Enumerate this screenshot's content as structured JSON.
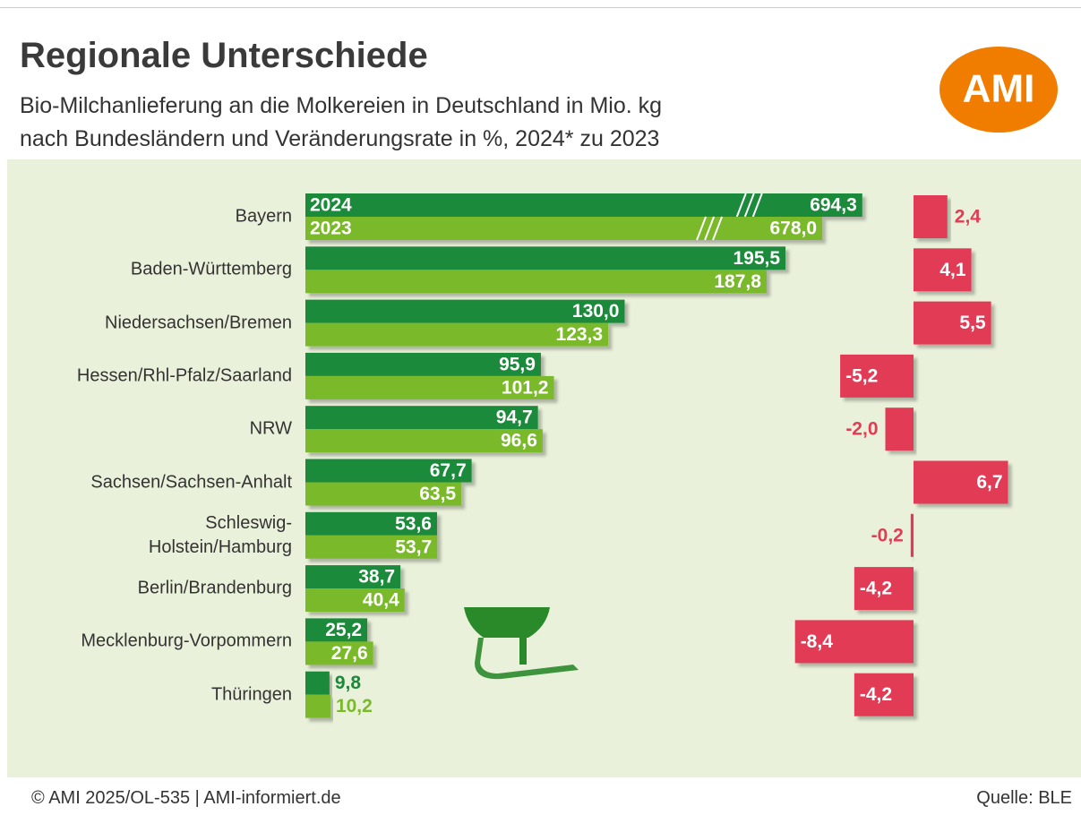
{
  "chart_data": [
    {
      "type": "bar",
      "orientation": "horizontal",
      "title": "Regionale Unterschiede",
      "subtitle": "Bio-Milchanlieferung an die Molkereien in Deutschland in Mio. kg\nnach Bundesländern und Veränderungsrate in %, 2024* zu 2023",
      "categories": [
        "Bayern",
        "Baden-Württemberg",
        "Niedersachsen/Bremen",
        "Hessen/Rhl-Pfalz/Saarland",
        "NRW",
        "Sachsen/Sachsen-Anhalt",
        "Schleswig-\nHolstein/Hamburg",
        "Berlin/Brandenburg",
        "Mecklenburg-Vorpommern",
        "Thüringen"
      ],
      "series": [
        {
          "name": "2024",
          "color": "#1a8a3a",
          "values": [
            694.3,
            195.5,
            130.0,
            95.9,
            94.7,
            67.7,
            53.6,
            38.7,
            25.2,
            9.8
          ],
          "value_labels": [
            "694,3",
            "195,5",
            "130,0",
            "95,9",
            "94,7",
            "67,7",
            "53,6",
            "38,7",
            "25,2",
            "9,8"
          ]
        },
        {
          "name": "2023",
          "color": "#7ab929",
          "values": [
            678.0,
            187.8,
            123.3,
            101.2,
            96.6,
            63.5,
            53.7,
            40.4,
            27.6,
            10.2
          ],
          "value_labels": [
            "678,0",
            "187,8",
            "123,3",
            "101,2",
            "96,6",
            "63,5",
            "53,7",
            "40,4",
            "27,6",
            "10,2"
          ]
        }
      ]
    },
    {
      "type": "bar",
      "orientation": "horizontal",
      "color": "#e23b54",
      "values": [
        2.4,
        4.1,
        5.5,
        -5.2,
        -2.0,
        6.7,
        -0.2,
        -4.2,
        -8.4,
        -4.2
      ],
      "value_labels": [
        "2,4",
        "4,1",
        "5,5",
        "-5,2",
        "-2,0",
        "6,7",
        "-0,2",
        "-4,2",
        "-8,4",
        "-4,2"
      ]
    }
  ],
  "logo": "AMI",
  "footer": "© AMI 2025/OL-535 | AMI-informiert.de",
  "source": "Quelle: BLE"
}
